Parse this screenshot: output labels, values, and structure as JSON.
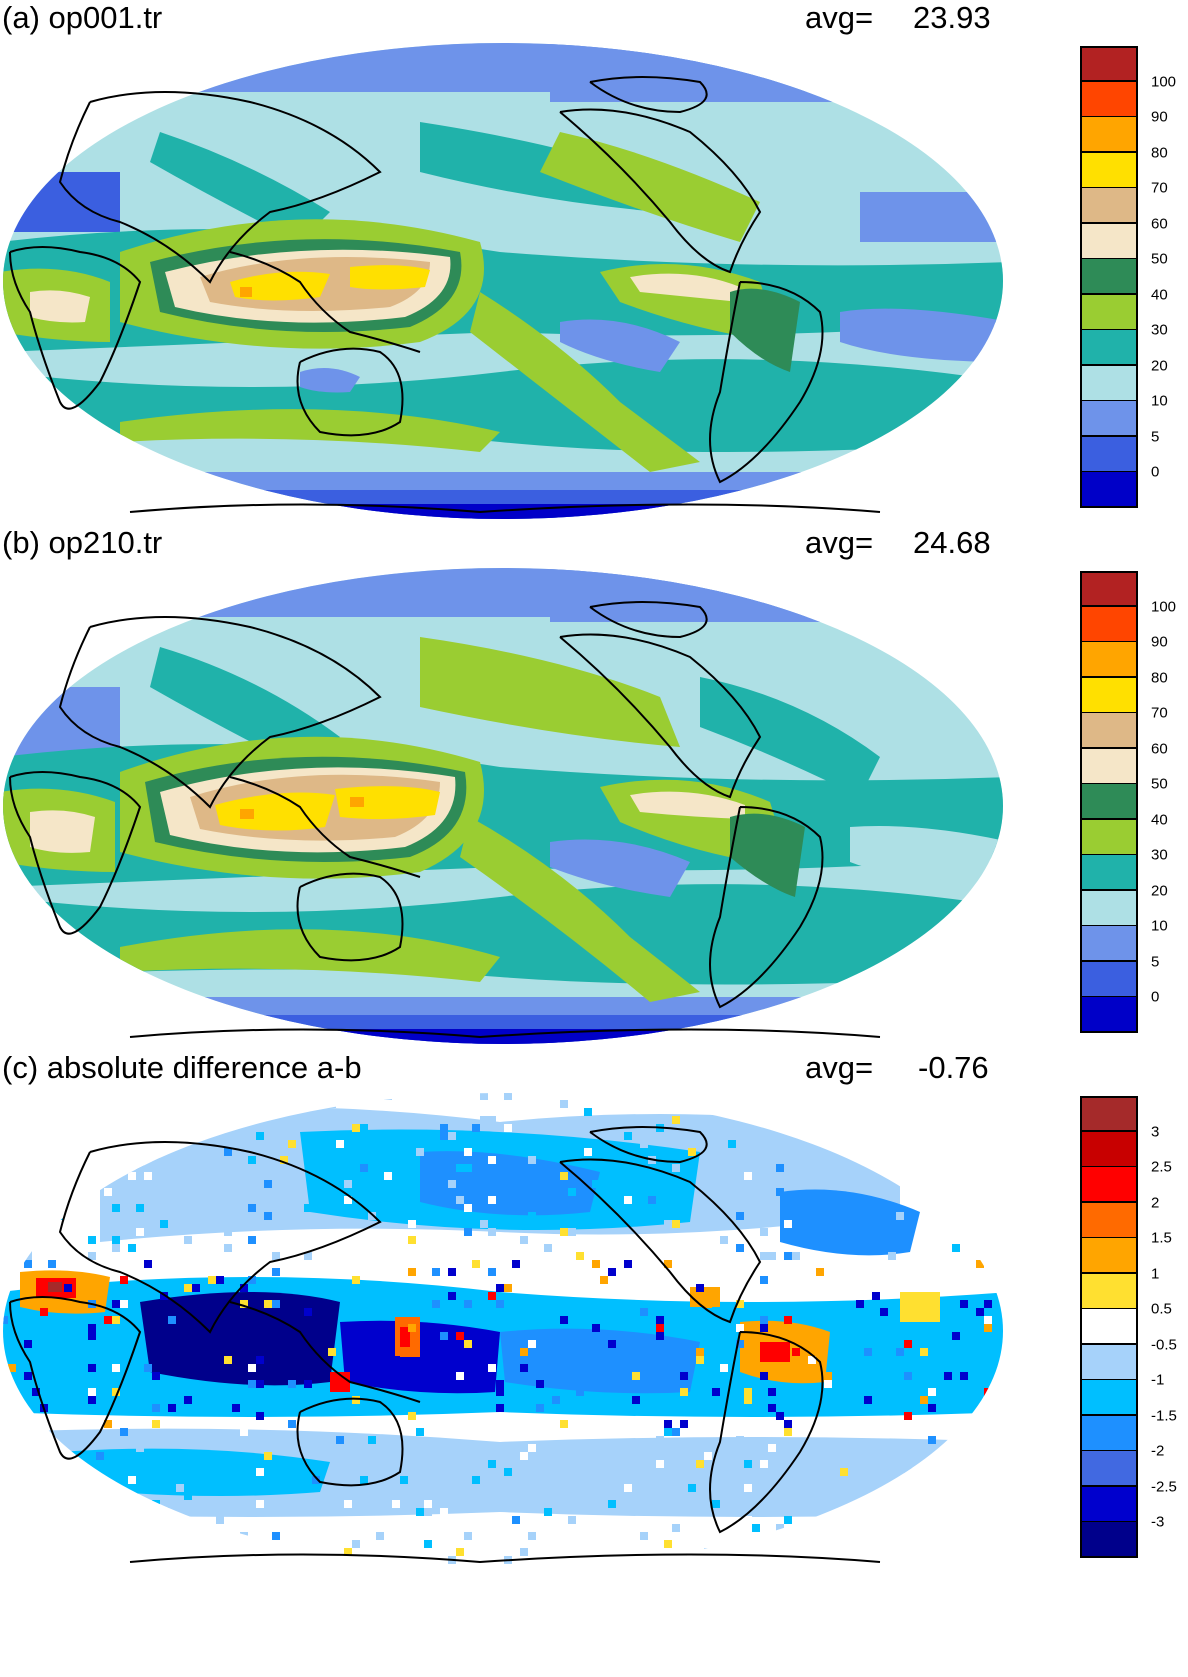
{
  "panels": [
    {
      "id": "a",
      "title": "(a) op001.tr",
      "avg_label": "avg=",
      "avg_value": "23.93",
      "colorbar": {
        "colors": [
          "#0000c8",
          "#3b5fe0",
          "#6e93ea",
          "#aee0e5",
          "#20b2aa",
          "#9acd32",
          "#2e8b57",
          "#f5e6c8",
          "#deb887",
          "#ffe000",
          "#ffa500",
          "#ff4500",
          "#b22222"
        ],
        "ticks": [
          "0",
          "5",
          "10",
          "20",
          "30",
          "40",
          "50",
          "60",
          "70",
          "80",
          "90",
          "100"
        ]
      }
    },
    {
      "id": "b",
      "title": "(b) op210.tr",
      "avg_label": "avg=",
      "avg_value": "24.68",
      "colorbar": {
        "colors": [
          "#0000c8",
          "#3b5fe0",
          "#6e93ea",
          "#aee0e5",
          "#20b2aa",
          "#9acd32",
          "#2e8b57",
          "#f5e6c8",
          "#deb887",
          "#ffe000",
          "#ffa500",
          "#ff4500",
          "#b22222"
        ],
        "ticks": [
          "0",
          "5",
          "10",
          "20",
          "30",
          "40",
          "50",
          "60",
          "70",
          "80",
          "90",
          "100"
        ]
      }
    },
    {
      "id": "c",
      "title": "(c) absolute difference a-b",
      "avg_label": "avg=",
      "avg_value": "-0.76",
      "colorbar": {
        "colors": [
          "#00008b",
          "#0000cd",
          "#4169e1",
          "#1e90ff",
          "#00bfff",
          "#a6d2fa",
          "#ffffff",
          "#ffe030",
          "#ffa500",
          "#ff6a00",
          "#ff0000",
          "#c80000",
          "#a52a2a"
        ],
        "ticks": [
          "-3",
          "-2.5",
          "-2",
          "-1.5",
          "-1",
          "-0.5",
          "0.5",
          "1",
          "1.5",
          "2",
          "2.5",
          "3"
        ]
      }
    }
  ]
}
